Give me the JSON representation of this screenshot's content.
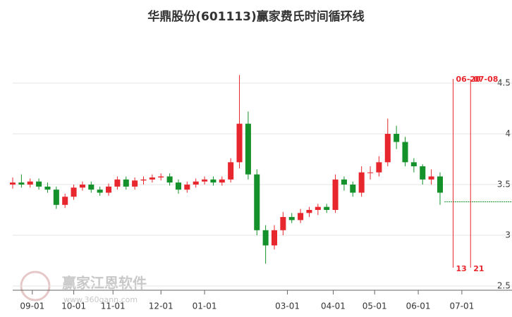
{
  "chart_data": {
    "type": "candlestick",
    "title": "华鼎股份(601113)赢家费氏时间循环线",
    "watermark": "赢家江恩软件",
    "watermark_url": "www.360gann.com",
    "x": [
      0,
      4,
      8,
      12,
      16,
      20,
      24,
      28,
      32,
      36,
      40,
      44,
      48,
      52,
      56,
      60,
      64,
      68,
      72,
      76,
      80,
      84,
      88,
      92,
      96,
      100,
      104,
      108,
      112,
      116,
      120,
      124,
      128,
      132,
      136,
      140,
      144,
      148,
      152,
      156,
      160,
      164,
      168,
      172,
      176,
      180,
      184,
      188,
      192,
      196
    ],
    "open": [
      3.5,
      3.52,
      3.5,
      3.53,
      3.48,
      3.45,
      3.3,
      3.38,
      3.47,
      3.5,
      3.45,
      3.42,
      3.48,
      3.55,
      3.48,
      3.54,
      3.55,
      3.57,
      3.58,
      3.52,
      3.45,
      3.5,
      3.53,
      3.55,
      3.52,
      3.55,
      3.72,
      4.1,
      3.6,
      3.05,
      2.9,
      3.05,
      3.18,
      3.15,
      3.22,
      3.25,
      3.28,
      3.25,
      3.55,
      3.5,
      3.42,
      3.62,
      3.62,
      3.72,
      4.0,
      3.92,
      3.72,
      3.68,
      3.55,
      3.58
    ],
    "high": [
      3.57,
      3.6,
      3.56,
      3.56,
      3.52,
      3.48,
      3.41,
      3.5,
      3.53,
      3.53,
      3.48,
      3.51,
      3.58,
      3.58,
      3.57,
      3.58,
      3.6,
      3.61,
      3.61,
      3.55,
      3.53,
      3.56,
      3.58,
      3.58,
      3.58,
      3.76,
      4.58,
      4.22,
      3.65,
      3.1,
      3.1,
      3.23,
      3.22,
      3.26,
      3.28,
      3.31,
      3.31,
      3.6,
      3.58,
      3.53,
      3.68,
      3.68,
      3.78,
      4.15,
      4.08,
      3.97,
      3.76,
      3.7,
      3.65,
      3.62
    ],
    "low": [
      3.46,
      3.47,
      3.47,
      3.45,
      3.42,
      3.26,
      3.27,
      3.35,
      3.44,
      3.42,
      3.39,
      3.39,
      3.45,
      3.45,
      3.45,
      3.5,
      3.52,
      3.54,
      3.49,
      3.41,
      3.42,
      3.47,
      3.5,
      3.49,
      3.49,
      3.52,
      3.66,
      3.55,
      3.0,
      2.72,
      2.86,
      3.0,
      3.12,
      3.12,
      3.18,
      3.2,
      3.22,
      3.22,
      3.44,
      3.38,
      3.38,
      3.55,
      3.58,
      3.68,
      3.85,
      3.68,
      3.62,
      3.5,
      3.5,
      3.3
    ],
    "close": [
      3.52,
      3.5,
      3.53,
      3.48,
      3.45,
      3.3,
      3.38,
      3.47,
      3.5,
      3.45,
      3.42,
      3.48,
      3.55,
      3.48,
      3.54,
      3.55,
      3.57,
      3.58,
      3.52,
      3.45,
      3.5,
      3.53,
      3.55,
      3.52,
      3.55,
      3.72,
      4.1,
      3.6,
      3.05,
      2.9,
      3.05,
      3.18,
      3.15,
      3.22,
      3.25,
      3.28,
      3.25,
      3.55,
      3.5,
      3.42,
      3.62,
      3.62,
      3.72,
      4.0,
      3.92,
      3.72,
      3.68,
      3.55,
      3.58,
      3.42
    ],
    "up_color": "#e8262d",
    "down_color": "#14912a",
    "projection": {
      "value": 3.33,
      "x": [
        198,
        229
      ],
      "color": "#14912a"
    },
    "cycle_lines": [
      {
        "x": 202,
        "date_label": "06-20",
        "count_label": "13"
      },
      {
        "x": 210,
        "date_label": "07-08",
        "count_label": "21"
      }
    ],
    "cycle_color": "#e8262d",
    "xlim": [
      0,
      229
    ],
    "xticks": [
      {
        "value": 9,
        "label": "09-01"
      },
      {
        "value": 28,
        "label": "10-01"
      },
      {
        "value": 46,
        "label": "11-01"
      },
      {
        "value": 68,
        "label": "12-01"
      },
      {
        "value": 88,
        "label": "01-01"
      },
      {
        "value": 126,
        "label": "03-01"
      },
      {
        "value": 147,
        "label": "04-01"
      },
      {
        "value": 166,
        "label": "05-01"
      },
      {
        "value": 186,
        "label": "06-01"
      },
      {
        "value": 206,
        "label": "07-01"
      }
    ],
    "ylim": [
      2.5,
      4.9
    ],
    "yticks": [
      2.5,
      3,
      3.5,
      4,
      4.5
    ],
    "grid": true
  }
}
